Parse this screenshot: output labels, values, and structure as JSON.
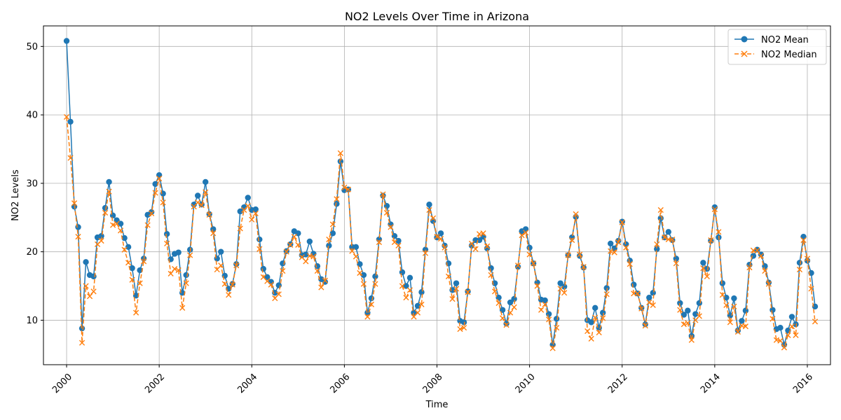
{
  "chart_data": {
    "type": "line",
    "title": "NO2 Levels Over Time in Arizona",
    "xlabel": "Time",
    "ylabel": "NO2 Levels",
    "x_start": "2000-01",
    "x_step": "1 month",
    "xlim": [
      "1999-07",
      "2016-07"
    ],
    "ylim": [
      3.5,
      53
    ],
    "x_ticks": [
      "2000",
      "2002",
      "2004",
      "2006",
      "2008",
      "2010",
      "2012",
      "2014",
      "2016"
    ],
    "y_ticks": [
      10,
      20,
      30,
      40,
      50
    ],
    "grid": true,
    "legend_position": "top-right",
    "series": [
      {
        "name": "NO2 Mean",
        "color": "#1f77b4",
        "style": "solid",
        "marker": "circle",
        "values": [
          50.8,
          39.0,
          26.6,
          23.6,
          8.8,
          18.5,
          16.6,
          16.4,
          22.1,
          22.3,
          26.4,
          30.2,
          25.3,
          24.6,
          24.1,
          22.0,
          20.7,
          17.6,
          13.6,
          17.3,
          19.0,
          25.4,
          25.8,
          29.9,
          31.2,
          28.5,
          22.6,
          18.9,
          19.7,
          19.9,
          14.0,
          16.6,
          20.3,
          26.9,
          28.2,
          26.9,
          30.2,
          25.5,
          23.3,
          19.0,
          20.0,
          16.5,
          14.6,
          15.3,
          18.2,
          25.9,
          26.5,
          27.9,
          26.1,
          26.2,
          21.8,
          17.5,
          16.3,
          15.6,
          14.0,
          15.1,
          18.3,
          20.1,
          21.1,
          23.0,
          22.7,
          19.5,
          19.6,
          21.5,
          19.7,
          17.9,
          16.0,
          15.6,
          20.9,
          22.7,
          27.0,
          33.2,
          29.0,
          29.1,
          20.7,
          20.7,
          18.2,
          16.6,
          11.1,
          13.2,
          16.4,
          21.8,
          28.2,
          26.7,
          24.0,
          22.3,
          21.6,
          17.0,
          15.0,
          16.2,
          11.1,
          12.1,
          14.1,
          20.3,
          26.9,
          24.5,
          22.1,
          22.7,
          20.9,
          18.3,
          14.4,
          15.4,
          9.9,
          9.7,
          14.2,
          20.9,
          21.7,
          21.7,
          22.2,
          20.5,
          17.6,
          15.4,
          13.3,
          11.5,
          9.5,
          12.6,
          13.1,
          17.8,
          23.0,
          23.3,
          20.6,
          18.3,
          15.5,
          13.0,
          12.9,
          10.9,
          6.4,
          10.2,
          15.4,
          14.9,
          19.5,
          22.1,
          25.1,
          19.4,
          17.7,
          10.0,
          9.7,
          11.8,
          8.9,
          11.1,
          14.7,
          21.2,
          20.5,
          21.6,
          24.4,
          21.1,
          18.7,
          15.2,
          13.9,
          11.8,
          9.4,
          13.3,
          14.0,
          20.4,
          24.9,
          22.1,
          22.9,
          21.7,
          19.0,
          12.5,
          10.8,
          11.4,
          7.7,
          10.9,
          12.5,
          18.4,
          17.5,
          21.6,
          26.5,
          22.1,
          15.4,
          13.3,
          10.7,
          13.2,
          8.5,
          9.9,
          11.4,
          18.1,
          19.4,
          20.3,
          19.6,
          17.9,
          15.5,
          11.5,
          8.7,
          8.9,
          6.4,
          8.5,
          10.5,
          9.4,
          18.4,
          22.2,
          18.7,
          16.9,
          12.0
        ]
      },
      {
        "name": "NO2 Median",
        "color": "#ff7f0e",
        "style": "dashed",
        "marker": "x",
        "values": [
          39.7,
          33.7,
          27.1,
          22.2,
          6.7,
          15.0,
          13.5,
          14.2,
          21.1,
          21.6,
          25.7,
          28.8,
          23.9,
          24.1,
          23.1,
          20.3,
          18.4,
          15.9,
          11.1,
          15.4,
          18.6,
          23.9,
          25.6,
          28.6,
          30.7,
          27.2,
          21.2,
          16.8,
          17.5,
          17.3,
          11.8,
          15.4,
          19.5,
          26.6,
          27.2,
          26.8,
          28.7,
          25.4,
          22.7,
          17.4,
          18.0,
          15.3,
          13.7,
          15.2,
          18.0,
          23.4,
          26.1,
          26.7,
          24.7,
          25.6,
          20.4,
          16.3,
          15.7,
          15.2,
          13.2,
          13.8,
          17.2,
          20.0,
          21.0,
          22.2,
          21.0,
          19.2,
          18.6,
          19.4,
          19.3,
          17.2,
          14.8,
          15.8,
          21.8,
          24.0,
          27.7,
          34.4,
          29.4,
          29.1,
          20.1,
          19.3,
          16.9,
          15.3,
          10.5,
          12.3,
          15.3,
          21.4,
          28.4,
          25.7,
          23.6,
          21.4,
          20.9,
          15.0,
          13.3,
          14.4,
          10.5,
          11.1,
          12.3,
          19.8,
          26.1,
          24.9,
          22.2,
          21.9,
          20.6,
          16.4,
          13.1,
          14.6,
          8.7,
          8.9,
          14.1,
          21.2,
          20.4,
          22.6,
          22.7,
          20.8,
          16.6,
          14.2,
          12.5,
          10.3,
          9.3,
          11.1,
          11.9,
          18.0,
          22.4,
          22.8,
          19.6,
          18.3,
          15.0,
          11.5,
          12.3,
          10.1,
          5.9,
          8.9,
          14.6,
          14.0,
          19.5,
          21.7,
          25.5,
          19.6,
          17.8,
          8.4,
          7.3,
          10.4,
          8.2,
          10.3,
          13.8,
          20.1,
          19.9,
          21.4,
          24.3,
          20.6,
          18.2,
          13.9,
          13.9,
          11.7,
          9.2,
          12.6,
          12.2,
          21.1,
          26.1,
          22.1,
          21.8,
          21.8,
          18.3,
          11.5,
          9.4,
          9.6,
          7.1,
          10.0,
          10.6,
          17.6,
          16.4,
          21.7,
          26.2,
          22.9,
          13.7,
          12.2,
          9.7,
          12.0,
          8.3,
          9.2,
          9.1,
          17.7,
          20.2,
          20.2,
          19.4,
          17.2,
          15.3,
          10.2,
          7.1,
          7.0,
          6.0,
          7.8,
          9.1,
          7.8,
          17.4,
          21.7,
          19.0,
          14.6,
          9.8
        ]
      }
    ]
  }
}
